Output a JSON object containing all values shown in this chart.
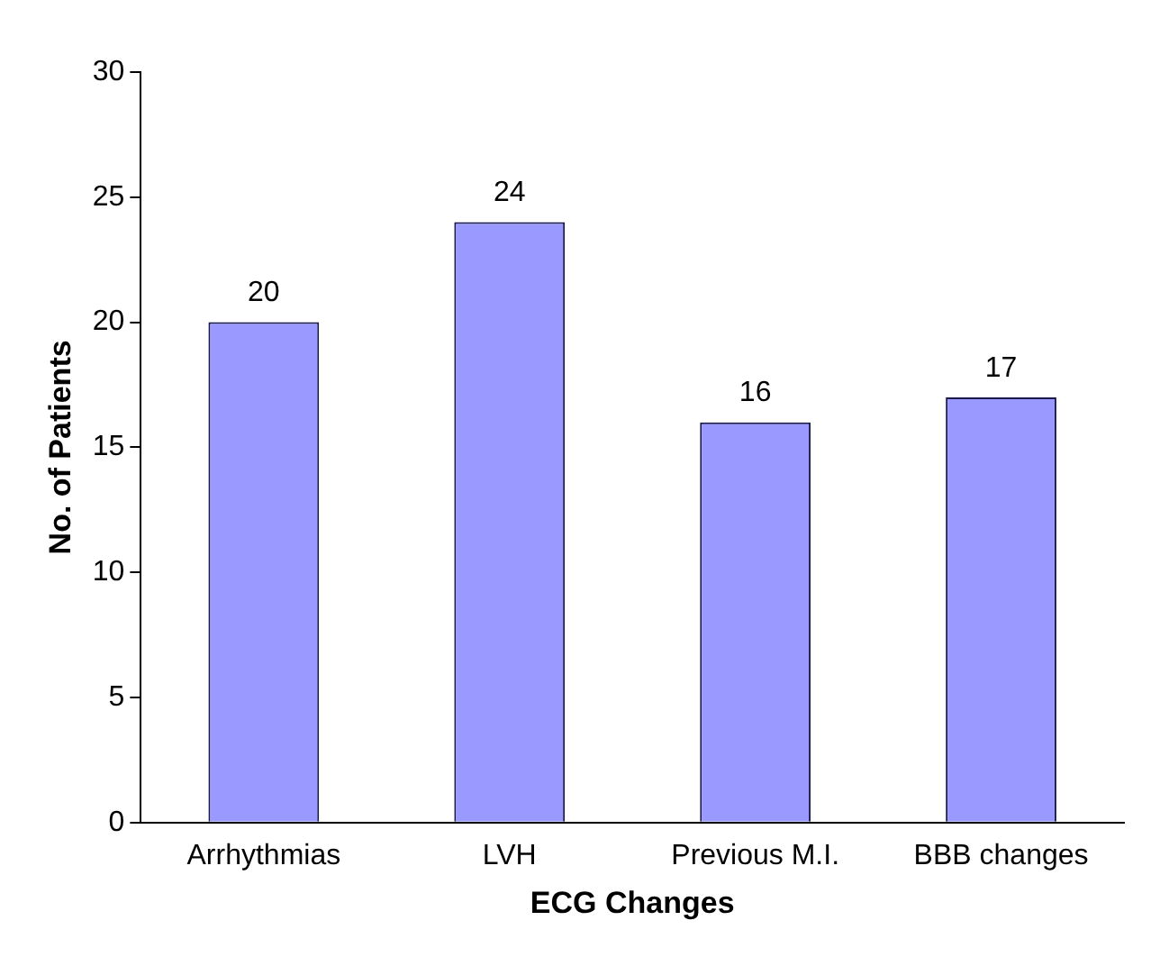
{
  "chart_data": {
    "type": "bar",
    "xlabel": "ECG Changes",
    "ylabel": "No. of Patients",
    "categories": [
      "Arrhythmias",
      "LVH",
      "Previous M.I.",
      "BBB changes"
    ],
    "values": [
      20,
      24,
      16,
      17
    ],
    "color": "#9999ff",
    "ylim": [
      0,
      30
    ],
    "yticks": [
      0,
      5,
      10,
      15,
      20,
      25,
      30
    ],
    "grid": false,
    "legend": false,
    "data_labels": true
  }
}
